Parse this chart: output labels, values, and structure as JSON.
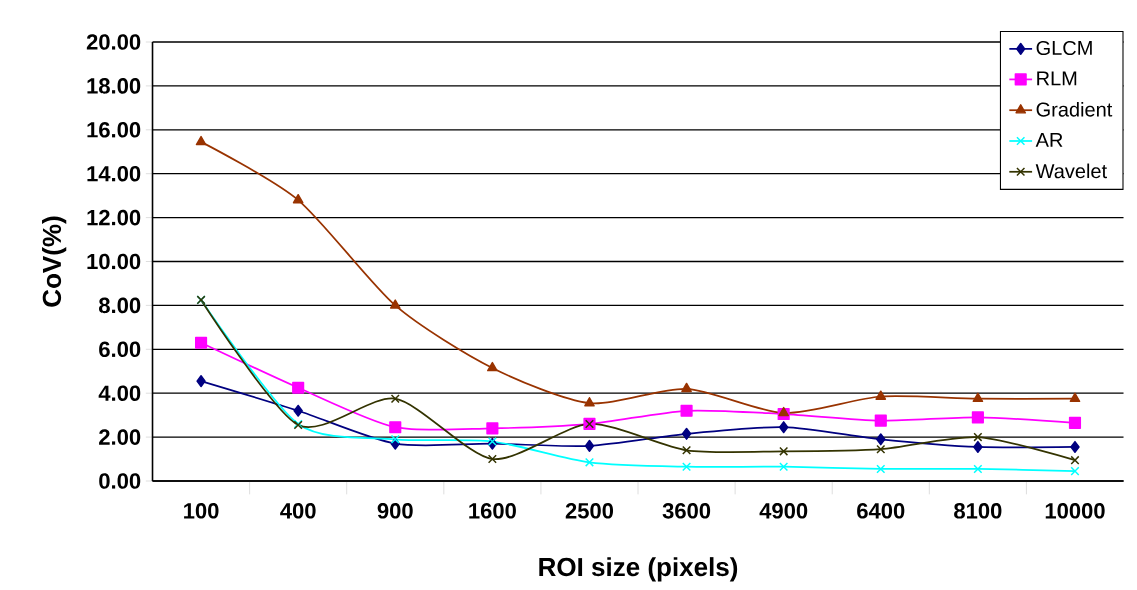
{
  "chart_data": {
    "type": "line",
    "xlabel": "ROI size (pixels)",
    "ylabel": "CoV(%)",
    "categories": [
      "100",
      "400",
      "900",
      "1600",
      "2500",
      "3600",
      "4900",
      "6400",
      "8100",
      "10000"
    ],
    "series": [
      {
        "name": "GLCM",
        "color": "#000080",
        "marker": "diamond",
        "values": [
          4.55,
          3.2,
          1.7,
          1.7,
          1.6,
          2.15,
          2.45,
          1.9,
          1.55,
          1.55
        ]
      },
      {
        "name": "RLM",
        "color": "#ff00ff",
        "marker": "square",
        "values": [
          6.3,
          4.25,
          2.45,
          2.4,
          2.6,
          3.2,
          3.05,
          2.75,
          2.9,
          2.65
        ]
      },
      {
        "name": "Gradient",
        "color": "#993300",
        "marker": "triangle",
        "values": [
          15.45,
          12.8,
          8.0,
          5.15,
          3.55,
          4.2,
          3.1,
          3.85,
          3.75,
          3.75
        ]
      },
      {
        "name": "AR",
        "color": "#00ffff",
        "marker": "cross",
        "values": [
          8.25,
          2.6,
          1.9,
          1.8,
          0.85,
          0.65,
          0.65,
          0.55,
          0.55,
          0.45
        ]
      },
      {
        "name": "Wavelet",
        "color": "#333300",
        "marker": "cross",
        "values": [
          8.25,
          2.55,
          3.75,
          1.0,
          2.6,
          1.4,
          1.35,
          1.45,
          2.0,
          0.95
        ]
      }
    ],
    "ylim": [
      0,
      20
    ],
    "yticks": [
      {
        "value": 0,
        "label": "0.00"
      },
      {
        "value": 2,
        "label": "2.00"
      },
      {
        "value": 4,
        "label": "4.00"
      },
      {
        "value": 6,
        "label": "6.00"
      },
      {
        "value": 8,
        "label": "8.00"
      },
      {
        "value": 10,
        "label": "10.00"
      },
      {
        "value": 12,
        "label": "12.00"
      },
      {
        "value": 14,
        "label": "14.00"
      },
      {
        "value": 16,
        "label": "16.00"
      },
      {
        "value": 18,
        "label": "18.00"
      },
      {
        "value": 20,
        "label": "20.00"
      }
    ],
    "grid": "y",
    "legend": "top right",
    "line_style": "solid"
  }
}
